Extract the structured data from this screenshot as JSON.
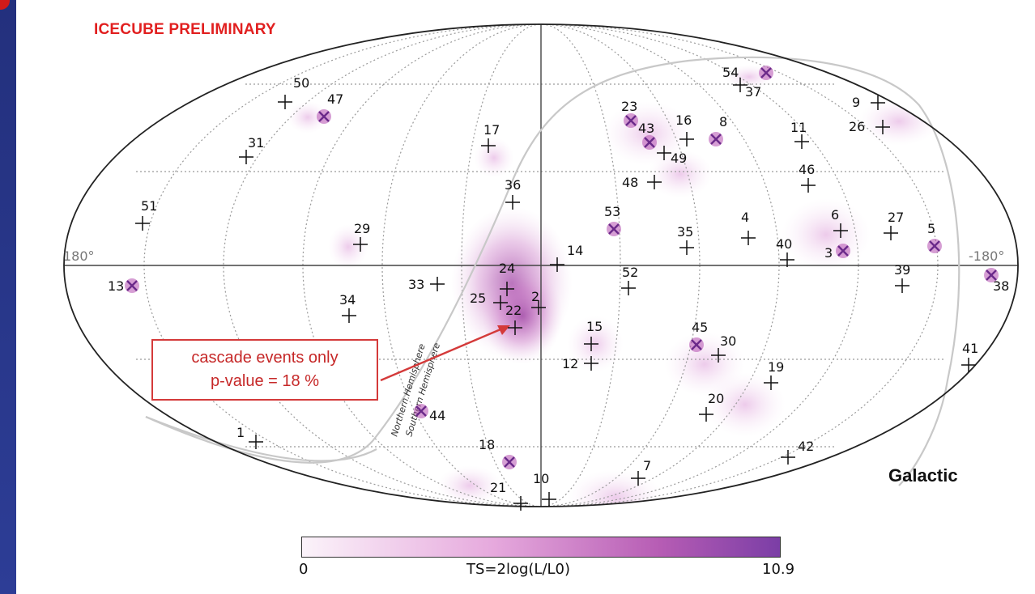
{
  "title": "ICECUBE PRELIMINARY",
  "coord_label": "Galactic",
  "axis": {
    "left": "180°",
    "right": "-180°"
  },
  "callout": {
    "line1": "cascade events only",
    "line2": "p-value = 18 %"
  },
  "hemisphere_labels": {
    "north": "Northern Hemisphere",
    "south": "Southern Hemisphere"
  },
  "colorbar": {
    "min": "0",
    "max": "10.9",
    "label": "TS=2log(L/L0)",
    "low_color": "#fbf3fa",
    "high_color": "#7b3ea6"
  },
  "colors": {
    "slide_bg": "#2b3a8f",
    "title_red": "#e11f1f",
    "track_marker": "#111111",
    "cascade_marker": "#6b2a8a"
  },
  "events": [
    {
      "id": "1",
      "marker": "cross"
    },
    {
      "id": "2",
      "marker": "cross"
    },
    {
      "id": "3",
      "marker": "x"
    },
    {
      "id": "4",
      "marker": "cross"
    },
    {
      "id": "5",
      "marker": "x"
    },
    {
      "id": "6",
      "marker": "cross"
    },
    {
      "id": "7",
      "marker": "cross"
    },
    {
      "id": "8",
      "marker": "x"
    },
    {
      "id": "9",
      "marker": "cross"
    },
    {
      "id": "10",
      "marker": "cross"
    },
    {
      "id": "11",
      "marker": "cross"
    },
    {
      "id": "12",
      "marker": "cross"
    },
    {
      "id": "13",
      "marker": "x"
    },
    {
      "id": "14",
      "marker": "cross"
    },
    {
      "id": "15",
      "marker": "cross"
    },
    {
      "id": "16",
      "marker": "cross"
    },
    {
      "id": "17",
      "marker": "cross"
    },
    {
      "id": "18",
      "marker": "x"
    },
    {
      "id": "19",
      "marker": "cross"
    },
    {
      "id": "20",
      "marker": "cross"
    },
    {
      "id": "21",
      "marker": "cross"
    },
    {
      "id": "22",
      "marker": "cross"
    },
    {
      "id": "23",
      "marker": "x"
    },
    {
      "id": "24",
      "marker": "cross"
    },
    {
      "id": "25",
      "marker": "cross"
    },
    {
      "id": "26",
      "marker": "cross"
    },
    {
      "id": "27",
      "marker": "cross"
    },
    {
      "id": "29",
      "marker": "cross"
    },
    {
      "id": "30",
      "marker": "cross"
    },
    {
      "id": "31",
      "marker": "cross"
    },
    {
      "id": "33",
      "marker": "cross"
    },
    {
      "id": "34",
      "marker": "cross"
    },
    {
      "id": "35",
      "marker": "cross"
    },
    {
      "id": "36",
      "marker": "cross"
    },
    {
      "id": "37",
      "marker": "cross"
    },
    {
      "id": "38",
      "marker": "x"
    },
    {
      "id": "39",
      "marker": "cross"
    },
    {
      "id": "40",
      "marker": "cross"
    },
    {
      "id": "41",
      "marker": "cross"
    },
    {
      "id": "42",
      "marker": "cross"
    },
    {
      "id": "43",
      "marker": "x"
    },
    {
      "id": "44",
      "marker": "x"
    },
    {
      "id": "45",
      "marker": "x"
    },
    {
      "id": "46",
      "marker": "cross"
    },
    {
      "id": "47",
      "marker": "x"
    },
    {
      "id": "48",
      "marker": "cross"
    },
    {
      "id": "49",
      "marker": "cross"
    },
    {
      "id": "50",
      "marker": "cross"
    },
    {
      "id": "51",
      "marker": "cross"
    },
    {
      "id": "52",
      "marker": "cross"
    },
    {
      "id": "53",
      "marker": "x"
    },
    {
      "id": "54",
      "marker": "x"
    }
  ]
}
